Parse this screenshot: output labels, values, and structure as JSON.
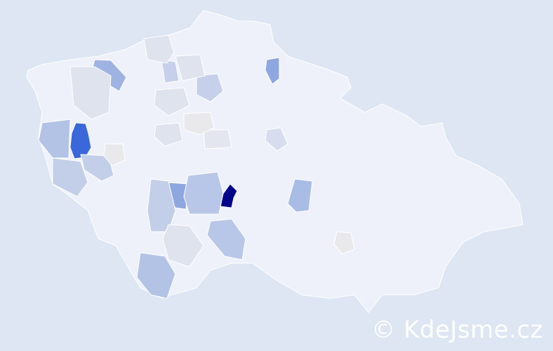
{
  "map": {
    "colors": {
      "background": "#dde6f2",
      "base": "#eef1fa",
      "level_low": "#dfe3ee",
      "level_light": "#c3cfe8",
      "level_mid": "#b3c3e5",
      "level_medium": "#8ea7e0",
      "level_high": "#3a67d9",
      "level_max": "#00008b",
      "outlier": "#e9e9ec"
    }
  },
  "watermark": {
    "text": "© KdeJsme.cz"
  }
}
